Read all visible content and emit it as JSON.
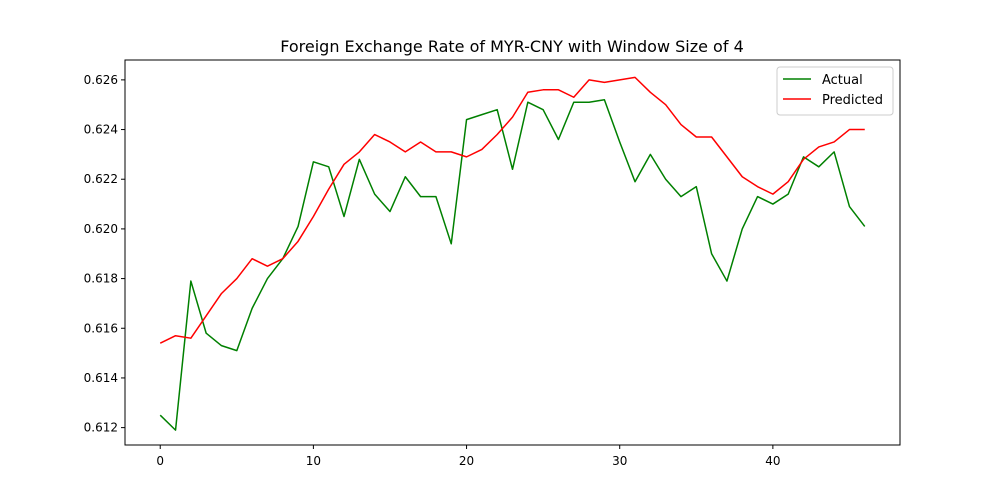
{
  "chart_data": {
    "type": "line",
    "title": "Foreign Exchange Rate of MYR-CNY with Window Size of 4",
    "xlabel": "",
    "ylabel": "",
    "xlim": [
      -2.3,
      48.3
    ],
    "ylim": [
      0.6113,
      0.6268
    ],
    "xticks": [
      0,
      10,
      20,
      30,
      40
    ],
    "yticks": [
      0.612,
      0.614,
      0.616,
      0.618,
      0.62,
      0.622,
      0.624,
      0.626
    ],
    "legend_position": "top-right",
    "series": [
      {
        "name": "Actual",
        "color": "#008000",
        "x": [
          0,
          1,
          2,
          3,
          4,
          5,
          6,
          7,
          8,
          9,
          10,
          11,
          12,
          13,
          14,
          15,
          16,
          17,
          18,
          19,
          20,
          21,
          22,
          23,
          24,
          25,
          26,
          27,
          28,
          29,
          30,
          31,
          32,
          33,
          34,
          35,
          36,
          37,
          38,
          39,
          40,
          41,
          42,
          43,
          44,
          45,
          46
        ],
        "values": [
          0.6125,
          0.6119,
          0.6179,
          0.6158,
          0.6153,
          0.6151,
          0.6168,
          0.618,
          0.6188,
          0.6201,
          0.6227,
          0.6225,
          0.6205,
          0.6228,
          0.6214,
          0.6207,
          0.6221,
          0.6213,
          0.6213,
          0.6194,
          0.6244,
          0.6246,
          0.6248,
          0.6224,
          0.6251,
          0.6248,
          0.6236,
          0.6251,
          0.6251,
          0.6252,
          0.6235,
          0.6219,
          0.623,
          0.622,
          0.6213,
          0.6217,
          0.619,
          0.6179,
          0.62,
          0.6213,
          0.621,
          0.6214,
          0.6229,
          0.6225,
          0.6231,
          0.6209,
          0.6201
        ]
      },
      {
        "name": "Predicted",
        "color": "#ff0000",
        "x": [
          0,
          1,
          2,
          3,
          4,
          5,
          6,
          7,
          8,
          9,
          10,
          11,
          12,
          13,
          14,
          15,
          16,
          17,
          18,
          19,
          20,
          21,
          22,
          23,
          24,
          25,
          26,
          27,
          28,
          29,
          30,
          31,
          32,
          33,
          34,
          35,
          36,
          37,
          38,
          39,
          40,
          41,
          42,
          43,
          44,
          45,
          46
        ],
        "values": [
          0.6154,
          0.6157,
          0.6156,
          0.6165,
          0.6174,
          0.618,
          0.6188,
          0.6185,
          0.6188,
          0.6195,
          0.6205,
          0.6216,
          0.6226,
          0.6231,
          0.6238,
          0.6235,
          0.6231,
          0.6235,
          0.6231,
          0.6231,
          0.6229,
          0.6232,
          0.6238,
          0.6245,
          0.6255,
          0.6256,
          0.6256,
          0.6253,
          0.626,
          0.6259,
          0.626,
          0.6261,
          0.6255,
          0.625,
          0.6242,
          0.6237,
          0.6237,
          0.6229,
          0.6221,
          0.6217,
          0.6214,
          0.6219,
          0.6228,
          0.6233,
          0.6235,
          0.624,
          0.624
        ]
      }
    ]
  }
}
